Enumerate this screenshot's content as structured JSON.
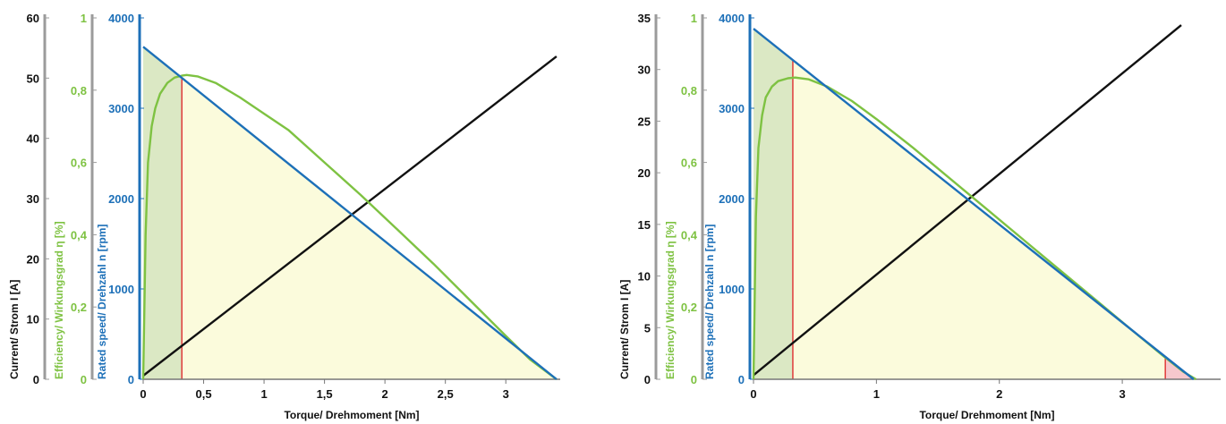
{
  "colors": {
    "current": "#111111",
    "efficiency": "#7ec242",
    "speed": "#1d70b8",
    "axis_gray": "#9b9b9b",
    "red_line": "#e03b3b",
    "green_fill": "#dbe8c4",
    "yellow_fill": "#fbfbdc",
    "pink_fill": "#f6c8cd"
  },
  "chart_data": [
    {
      "type": "line",
      "x_axis": {
        "label": "Torque/ Drehmoment [Nm]",
        "lim": [
          0,
          3.45
        ],
        "ticks": [
          0,
          0.5,
          1,
          1.5,
          2,
          2.5,
          3
        ],
        "tick_labels": [
          "0",
          "0,5",
          "1",
          "1,5",
          "2",
          "2,5",
          "3"
        ]
      },
      "y_axes": {
        "current": {
          "label": "Current/ Strom I [A]",
          "lim": [
            0,
            60
          ],
          "ticks": [
            0,
            10,
            20,
            30,
            40,
            50,
            60
          ],
          "tick_labels": [
            "0",
            "10",
            "20",
            "30",
            "40",
            "50",
            "60"
          ]
        },
        "efficiency": {
          "label": "Efficiency/ Wirkungsgrad η [%]",
          "lim": [
            0,
            1
          ],
          "ticks": [
            0,
            0.2,
            0.4,
            0.6,
            0.8,
            1
          ],
          "tick_labels": [
            "0",
            "0,2",
            "0,4",
            "0,6",
            "0,8",
            "1"
          ]
        },
        "speed": {
          "label": "Rated speed/ Drehzahl n [rpm]",
          "lim": [
            0,
            4000
          ],
          "ticks": [
            0,
            1000,
            2000,
            3000,
            4000
          ],
          "tick_labels": [
            "0",
            "1000",
            "2000",
            "3000",
            "4000"
          ]
        }
      },
      "series": [
        {
          "key": "current",
          "x": [
            0,
            3.42
          ],
          "y": [
            0.6,
            53.6
          ]
        },
        {
          "key": "efficiency",
          "x": [
            0,
            0.02,
            0.04,
            0.07,
            0.1,
            0.14,
            0.2,
            0.26,
            0.32,
            0.36,
            0.45,
            0.6,
            0.8,
            1.0,
            1.2,
            1.5,
            1.8,
            2.1,
            2.4,
            2.7,
            3.0,
            3.2,
            3.42
          ],
          "y": [
            0,
            0.4,
            0.6,
            0.7,
            0.75,
            0.79,
            0.82,
            0.835,
            0.84,
            0.842,
            0.838,
            0.82,
            0.78,
            0.735,
            0.69,
            0.6,
            0.51,
            0.415,
            0.32,
            0.22,
            0.12,
            0.055,
            0
          ]
        },
        {
          "key": "speed",
          "x": [
            0,
            3.42
          ],
          "y": [
            3680,
            0
          ]
        }
      ],
      "rated_torque": 0.32,
      "grid": false,
      "legend": "none"
    },
    {
      "type": "line",
      "x_axis": {
        "label": "Torque/ Drehmoment [Nm]",
        "lim": [
          0,
          3.8
        ],
        "ticks": [
          0,
          1,
          2,
          3
        ],
        "tick_labels": [
          "0",
          "1",
          "2",
          "3"
        ]
      },
      "y_axes": {
        "current": {
          "label": "Current/ Strom I [A]",
          "lim": [
            0,
            35
          ],
          "ticks": [
            0,
            5,
            10,
            15,
            20,
            25,
            30,
            35
          ],
          "tick_labels": [
            "0",
            "5",
            "10",
            "15",
            "20",
            "25",
            "30",
            "35"
          ]
        },
        "efficiency": {
          "label": "Efficiency/ Wirkungsgrad η [%]",
          "lim": [
            0,
            1
          ],
          "ticks": [
            0,
            0.2,
            0.4,
            0.6,
            0.8,
            1
          ],
          "tick_labels": [
            "0",
            "0,2",
            "0,4",
            "0,6",
            "0,8",
            "1"
          ]
        },
        "speed": {
          "label": "Rated speed/ Drehzahl n [rpm]",
          "lim": [
            0,
            4000
          ],
          "ticks": [
            0,
            1000,
            2000,
            3000,
            4000
          ],
          "tick_labels": [
            "0",
            "1000",
            "2000",
            "3000",
            "4000"
          ]
        }
      },
      "series": [
        {
          "key": "current",
          "x": [
            0,
            3.48
          ],
          "y": [
            0.4,
            34.3
          ]
        },
        {
          "key": "efficiency",
          "x": [
            0,
            0.02,
            0.04,
            0.07,
            0.1,
            0.15,
            0.2,
            0.28,
            0.34,
            0.45,
            0.6,
            0.8,
            1.0,
            1.3,
            1.6,
            1.9,
            2.2,
            2.5,
            2.8,
            3.1,
            3.35,
            3.5,
            3.6
          ],
          "y": [
            0,
            0.45,
            0.64,
            0.73,
            0.78,
            0.81,
            0.825,
            0.833,
            0.835,
            0.83,
            0.81,
            0.77,
            0.72,
            0.64,
            0.555,
            0.47,
            0.385,
            0.3,
            0.215,
            0.13,
            0.06,
            0.02,
            0
          ]
        },
        {
          "key": "speed",
          "x": [
            0,
            3.58
          ],
          "y": [
            3880,
            0
          ]
        }
      ],
      "rated_torque": 0.32,
      "overload_torque": 3.35,
      "grid": false,
      "legend": "none"
    }
  ]
}
